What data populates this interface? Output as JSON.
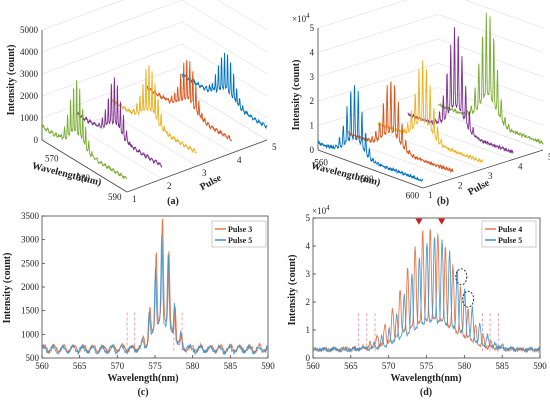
{
  "chart_data": [
    {
      "id": "a",
      "type": "line",
      "projection": "3d-waterfall",
      "caption": "(a)",
      "xlabel": "Wavelength(nm)",
      "ylabel": "Pulse",
      "zlabel": "Intensity (count)",
      "x_ticks": [
        "570",
        "580",
        "590"
      ],
      "y_ticks": [
        "1",
        "2",
        "3",
        "4",
        "5"
      ],
      "z_ticks": [
        "0",
        "1000",
        "2000",
        "3000",
        "4000",
        "5000"
      ],
      "xlim": [
        565,
        592
      ],
      "zlim": [
        0,
        5000
      ],
      "series": [
        {
          "pulse": 1,
          "color": "#77ac30",
          "base": 600,
          "peak": 3700,
          "center": 576,
          "width": 3.0
        },
        {
          "pulse": 2,
          "color": "#7e2f8e",
          "base": 600,
          "peak": 3300,
          "center": 577,
          "width": 3.0
        },
        {
          "pulse": 3,
          "color": "#edb120",
          "base": 600,
          "peak": 3300,
          "center": 577,
          "width": 3.2
        },
        {
          "pulse": 4,
          "color": "#d95319",
          "base": 600,
          "peak": 3100,
          "center": 578,
          "width": 3.4
        },
        {
          "pulse": 5,
          "color": "#0072bd",
          "base": 600,
          "peak": 2900,
          "center": 579,
          "width": 3.6
        }
      ]
    },
    {
      "id": "b",
      "type": "line",
      "projection": "3d-waterfall",
      "caption": "(b)",
      "xlabel": "Wavelength(nm)",
      "ylabel": "Pulse",
      "zlabel": "Intensity (count)",
      "z_multiplier": "×10",
      "z_exponent": "4",
      "x_ticks": [
        "560",
        "580",
        "600"
      ],
      "y_ticks": [
        "1",
        "2",
        "3",
        "4",
        "5"
      ],
      "z_ticks": [
        "0",
        "1",
        "2",
        "3",
        "4",
        "5"
      ],
      "xlim": [
        556,
        602
      ],
      "zlim": [
        0,
        5
      ],
      "series": [
        {
          "pulse": 1,
          "color": "#0072bd",
          "base": 0.3,
          "peak": 3.3,
          "center": 572,
          "width": 5
        },
        {
          "pulse": 2,
          "color": "#d95319",
          "base": 0.3,
          "peak": 3.2,
          "center": 575,
          "width": 5
        },
        {
          "pulse": 3,
          "color": "#edb120",
          "base": 0.3,
          "peak": 3.6,
          "center": 576,
          "width": 5
        },
        {
          "pulse": 4,
          "color": "#7e2f8e",
          "base": 0.3,
          "peak": 4.6,
          "center": 577,
          "width": 5
        },
        {
          "pulse": 5,
          "color": "#77ac30",
          "base": 0.3,
          "peak": 4.9,
          "center": 578,
          "width": 5
        }
      ]
    },
    {
      "id": "c",
      "type": "line",
      "caption": "(c)",
      "xlabel": "Wavelength(nm)",
      "ylabel": "Intensity (count)",
      "xlim": [
        560,
        590
      ],
      "ylim": [
        500,
        3500
      ],
      "x_ticks": [
        560,
        565,
        570,
        575,
        580,
        585,
        590
      ],
      "y_ticks": [
        500,
        1000,
        1500,
        2000,
        2500,
        3000,
        3500
      ],
      "legend": {
        "position": "top-right"
      },
      "dashed_markers": [
        571.3,
        572.3,
        577.5,
        578.6
      ],
      "series": [
        {
          "name": "Pulse 3",
          "color": "#e8784a",
          "base": 700,
          "peak": 3450,
          "center": 576,
          "width": 1.6,
          "spacing": 0.85,
          "phase": 0.0
        },
        {
          "name": "Pulse 5",
          "color": "#3d92c8",
          "base": 680,
          "peak": 3100,
          "center": 576,
          "width": 1.7,
          "spacing": 0.85,
          "phase": 0.35
        }
      ]
    },
    {
      "id": "d",
      "type": "line",
      "caption": "(d)",
      "xlabel": "Wavelength(nm)",
      "ylabel": "Intensity (count)",
      "y_multiplier": "×10",
      "y_exponent": "4",
      "xlim": [
        560,
        590
      ],
      "ylim": [
        0,
        5
      ],
      "x_ticks": [
        560,
        565,
        570,
        575,
        580,
        585,
        590
      ],
      "y_ticks": [
        0,
        1,
        2,
        3,
        4,
        5
      ],
      "legend": {
        "position": "top-right"
      },
      "dashed_markers": [
        566,
        567.1,
        568.2,
        582.4,
        583.4,
        584.5
      ],
      "peak_markers": [
        574,
        577
      ],
      "circle_markers": [
        {
          "x": 579.6,
          "y": 2.9
        },
        {
          "x": 580.5,
          "y": 2.1
        }
      ],
      "series": [
        {
          "name": "Pulse 4",
          "color": "#e8784a",
          "base": 0.3,
          "peak": 4.7,
          "center": 575.5,
          "width": 4.8,
          "spacing": 1.0,
          "phase": 0.0
        },
        {
          "name": "Pulse 5",
          "color": "#3d92c8",
          "base": 0.3,
          "peak": 4.4,
          "center": 576.2,
          "width": 4.8,
          "spacing": 1.0,
          "phase": 0.45
        }
      ]
    }
  ]
}
